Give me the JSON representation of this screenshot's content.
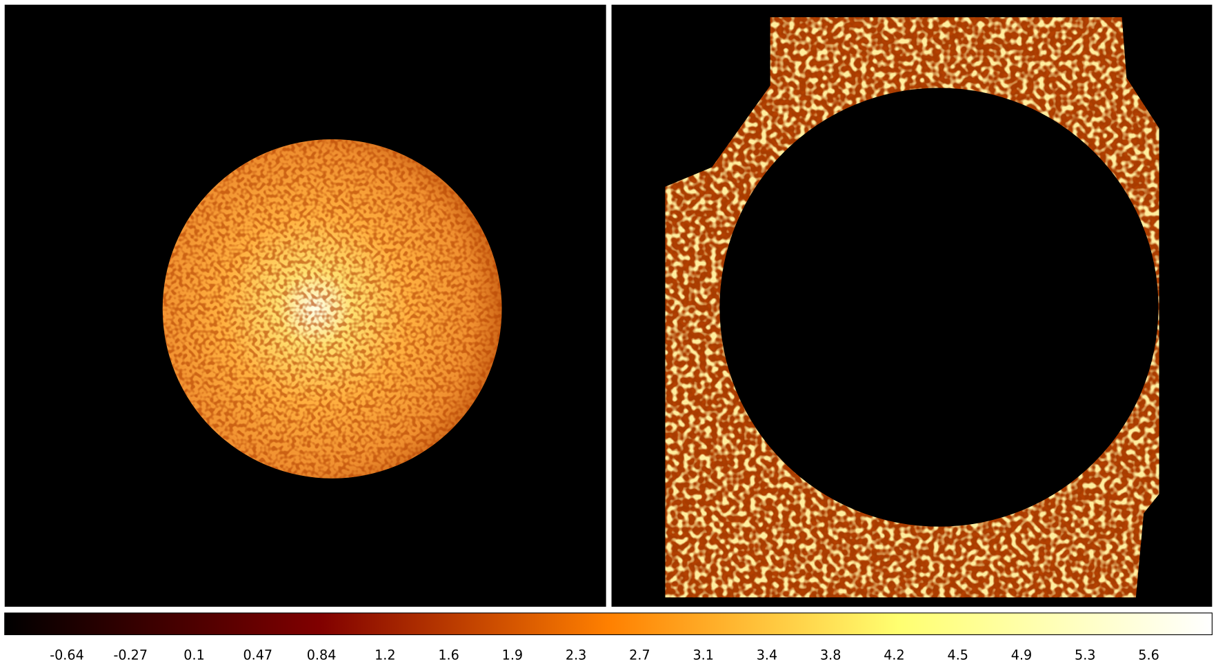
{
  "colorbar": {
    "tick_labels": [
      -0.64,
      -0.27,
      0.1,
      0.47,
      0.84,
      1.2,
      1.6,
      1.9,
      2.3,
      2.7,
      3.1,
      3.4,
      3.8,
      4.2,
      4.5,
      4.9,
      5.3,
      5.6
    ]
  }
}
